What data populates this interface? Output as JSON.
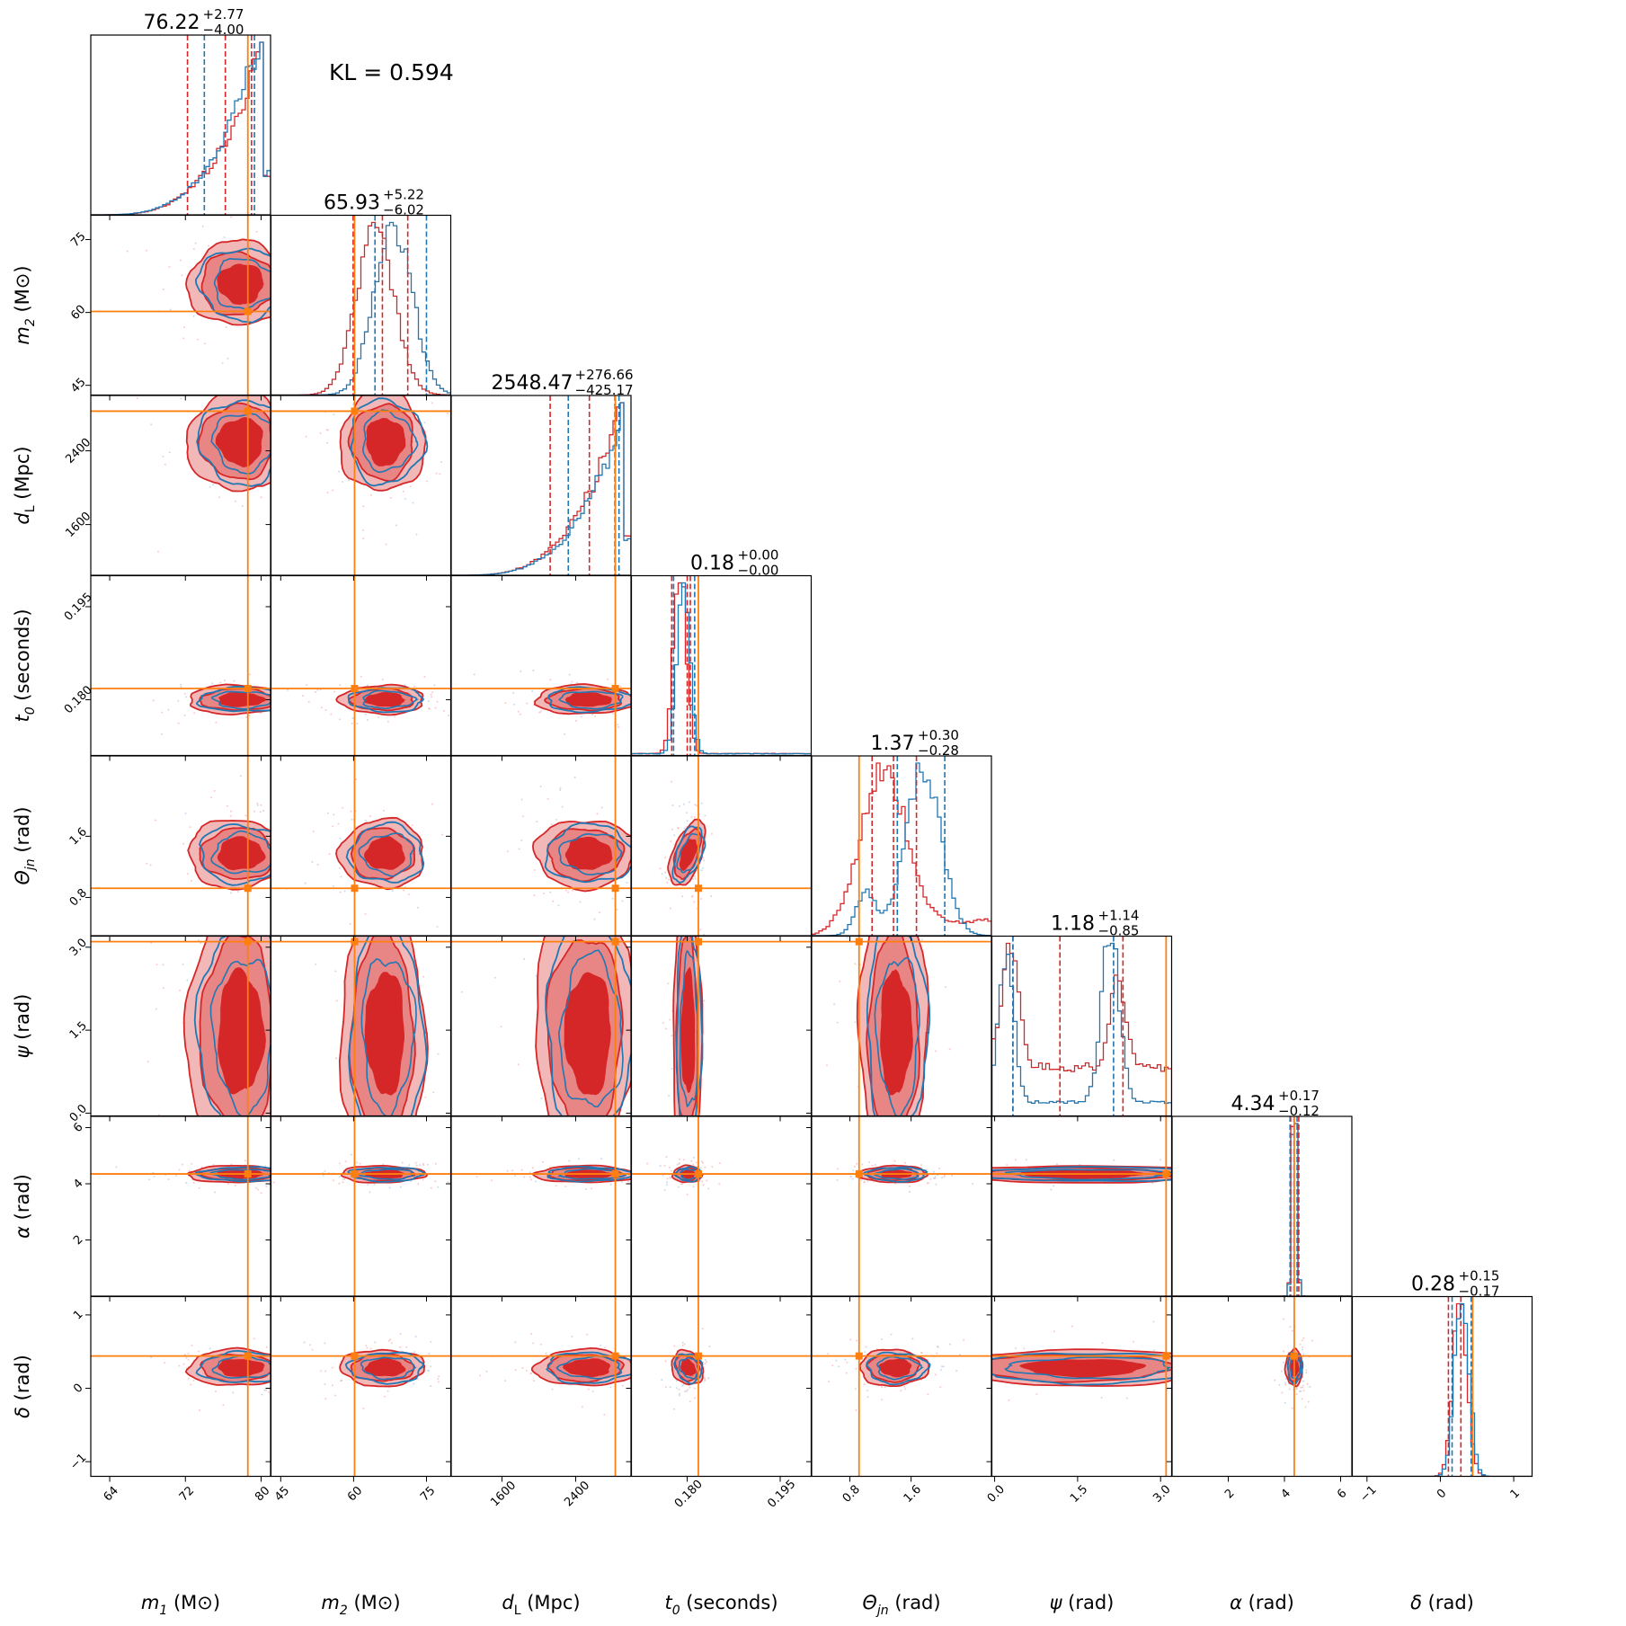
{
  "annotation": "KL = 0.594",
  "colors": {
    "red": "#d62728",
    "blue": "#1f77b4",
    "orange": "#ff7f0e",
    "red_fill_light": "#f2b8b8",
    "red_fill_mid": "#e88585"
  },
  "chart_data": {
    "type": "corner",
    "params": [
      {
        "key": "m1",
        "label_sym": "m",
        "label_sub": "1",
        "label_unit": "(M⊙)",
        "range": [
          62,
          81
        ],
        "ticks": [
          64,
          72,
          80
        ],
        "tick_labels": [
          "64",
          "72",
          "80"
        ],
        "truth": 78.6,
        "median": 76.22,
        "plus": "2.77",
        "minus": "4.00",
        "title_value": "76.22",
        "red_q": [
          72.22,
          78.99
        ],
        "blue_q": [
          74.0,
          79.3
        ],
        "hist": "left_skew"
      },
      {
        "key": "m2",
        "label_sym": "m",
        "label_sub": "2",
        "label_unit": "(M⊙)",
        "range": [
          43,
          80
        ],
        "ticks": [
          45,
          60,
          75
        ],
        "tick_labels": [
          "45",
          "60",
          "75"
        ],
        "truth": 60.2,
        "median": 65.93,
        "plus": "5.22",
        "minus": "6.02",
        "title_value": "65.93",
        "red_q": [
          59.91,
          71.15
        ],
        "blue_q": [
          64.4,
          75.0
        ],
        "hist": "bell"
      },
      {
        "key": "dL",
        "label_sym": "d",
        "label_sub": "L",
        "label_unit": "(Mpc)",
        "range": [
          1050,
          3000
        ],
        "ticks": [
          1600,
          2400
        ],
        "tick_labels": [
          "1600",
          "2400"
        ],
        "truth": 2830,
        "median": 2548.47,
        "plus": "276.66",
        "minus": "425.17",
        "title_value": "2548.47",
        "red_q": [
          2123.3,
          2825.13
        ],
        "blue_q": [
          2320,
          2870
        ],
        "hist": "left_skew"
      },
      {
        "key": "t0",
        "label_sym": "t",
        "label_sub": "0",
        "label_unit": "(seconds)",
        "range": [
          0.171,
          0.2
        ],
        "ticks": [
          0.18,
          0.195
        ],
        "tick_labels": [
          "0.180",
          "0.195"
        ],
        "truth": 0.1818,
        "median": 0.18,
        "plus": "0.00",
        "minus": "0.00",
        "title_value": "0.18",
        "red_q": [
          0.1775,
          0.1805
        ],
        "blue_q": [
          0.1778,
          0.1812
        ],
        "hist": "narrow"
      },
      {
        "key": "theta",
        "label_sym": "Θ",
        "label_sub": "jn",
        "label_unit": "(rad)",
        "range": [
          0.3,
          2.65
        ],
        "ticks": [
          0.8,
          1.6
        ],
        "tick_labels": [
          "0.8",
          "1.6"
        ],
        "truth": 0.92,
        "median": 1.37,
        "plus": "0.30",
        "minus": "0.28",
        "title_value": "1.37",
        "red_q": [
          1.09,
          1.67
        ],
        "blue_q": [
          1.42,
          2.04
        ],
        "hist": "theta"
      },
      {
        "key": "psi",
        "label_sym": "ψ",
        "label_sub": "",
        "label_unit": "(rad)",
        "range": [
          -0.05,
          3.2
        ],
        "ticks": [
          0.0,
          1.5,
          3.0
        ],
        "tick_labels": [
          "0.0",
          "1.5",
          "3.0"
        ],
        "truth": 3.1,
        "median": 1.18,
        "plus": "1.14",
        "minus": "0.85",
        "title_value": "1.18",
        "red_q": [
          0.33,
          2.32
        ],
        "blue_q": [
          0.33,
          2.15
        ],
        "hist": "psi"
      },
      {
        "key": "alpha",
        "label_sym": "α",
        "label_sub": "",
        "label_unit": "(rad)",
        "range": [
          0.0,
          6.4
        ],
        "ticks": [
          2,
          4,
          6
        ],
        "tick_labels": [
          "2",
          "4",
          "6"
        ],
        "truth": 4.35,
        "median": 4.34,
        "plus": "0.17",
        "minus": "0.12",
        "title_value": "4.34",
        "red_q": [
          4.22,
          4.51
        ],
        "blue_q": [
          4.2,
          4.45
        ],
        "hist": "spike"
      },
      {
        "key": "delta",
        "label_sym": "δ",
        "label_sub": "",
        "label_unit": "(rad)",
        "range": [
          -1.2,
          1.25
        ],
        "ticks": [
          -1,
          0,
          1
        ],
        "tick_labels": [
          "−1",
          "0",
          "1"
        ],
        "truth": 0.44,
        "median": 0.28,
        "plus": "0.15",
        "minus": "0.17",
        "title_value": "0.28",
        "red_q": [
          0.11,
          0.43
        ],
        "blue_q": [
          0.16,
          0.42
        ],
        "hist": "bell_narrow"
      }
    ],
    "series": [
      "red",
      "blue"
    ],
    "truth_color": "orange",
    "grid": false
  }
}
